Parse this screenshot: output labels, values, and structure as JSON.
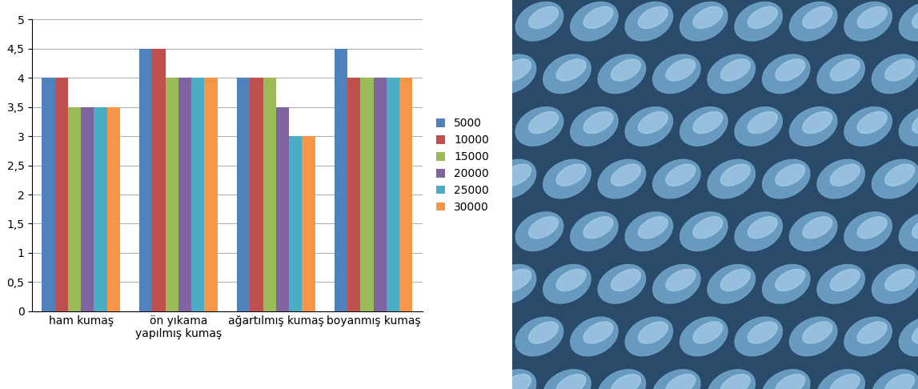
{
  "chart_data": {
    "type": "bar",
    "categories": [
      "ham kumaş",
      "ön yıkama\nyapılmış kumaş",
      "ağartılmış kumaş",
      "boyanmış kumaş"
    ],
    "series": [
      {
        "name": "5000",
        "color": "#4F81BD",
        "values": [
          4,
          4.5,
          4,
          4.5
        ]
      },
      {
        "name": "10000",
        "color": "#C0504D",
        "values": [
          4,
          4.5,
          4,
          4
        ]
      },
      {
        "name": "15000",
        "color": "#9BBB59",
        "values": [
          3.5,
          4,
          4,
          4
        ]
      },
      {
        "name": "20000",
        "color": "#8064A2",
        "values": [
          3.5,
          4,
          3.5,
          4
        ]
      },
      {
        "name": "25000",
        "color": "#4BACC6",
        "values": [
          3.5,
          4,
          3,
          4
        ]
      },
      {
        "name": "30000",
        "color": "#F79646",
        "values": [
          3.5,
          4,
          3,
          4
        ]
      }
    ],
    "ylim": [
      0,
      5
    ],
    "yticks": [
      0,
      {
        "value": 0.5,
        "label": "0,5"
      },
      1,
      {
        "value": 1.5,
        "label": "1,5"
      },
      2,
      {
        "value": 2.5,
        "label": "2,5"
      },
      3,
      {
        "value": 3.5,
        "label": "3,5"
      },
      4,
      {
        "value": 4.5,
        "label": "4,5"
      },
      5
    ],
    "grid": true,
    "legend": "right"
  }
}
